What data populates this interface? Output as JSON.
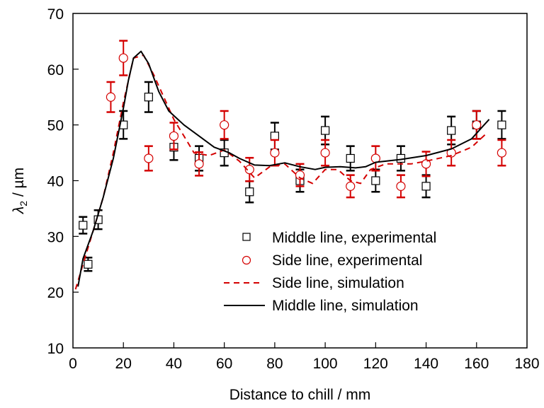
{
  "chart_data": {
    "type": "scatter",
    "title": "",
    "xlabel": "Distance to chill / mm",
    "ylabel_symbol": "λ",
    "ylabel_subscript": "2",
    "ylabel_unit": " / µm",
    "xlim": [
      0,
      180
    ],
    "ylim": [
      10,
      70
    ],
    "xticks": [
      0,
      20,
      40,
      60,
      80,
      100,
      120,
      140,
      160,
      180
    ],
    "yticks": [
      10,
      20,
      30,
      40,
      50,
      60,
      70
    ],
    "grid": false,
    "legend_position": "center-right",
    "colors": {
      "black": "#000000",
      "red": "#d40000"
    },
    "series": [
      {
        "name": "Middle line, experimental",
        "kind": "points",
        "marker": "square",
        "color": "#000000",
        "x": [
          4,
          6,
          10,
          20,
          30,
          40,
          50,
          60,
          70,
          80,
          90,
          100,
          110,
          120,
          130,
          140,
          150,
          160,
          170
        ],
        "y": [
          32,
          25,
          33,
          50,
          55,
          46,
          44,
          45,
          38,
          48,
          40,
          49,
          44,
          40,
          44,
          39,
          49,
          50,
          50
        ],
        "err": [
          1.5,
          1.2,
          1.7,
          2.5,
          2.7,
          2.3,
          2.2,
          2.3,
          1.9,
          2.4,
          2.0,
          2.5,
          2.2,
          2.0,
          2.2,
          2.0,
          2.5,
          2.5,
          2.5
        ]
      },
      {
        "name": "Side line, experimental",
        "kind": "points",
        "marker": "circle",
        "color": "#d40000",
        "x": [
          15,
          20,
          30,
          40,
          50,
          60,
          70,
          80,
          90,
          100,
          110,
          120,
          130,
          140,
          150,
          160,
          170
        ],
        "y": [
          55,
          62,
          44,
          48,
          43,
          50,
          42,
          45,
          41,
          45,
          39,
          44,
          39,
          43,
          45,
          50,
          45
        ],
        "err": [
          2.7,
          3.1,
          2.2,
          2.4,
          2.1,
          2.5,
          2.1,
          2.3,
          2.0,
          2.3,
          2.0,
          2.2,
          2.0,
          2.2,
          2.3,
          2.5,
          2.3
        ]
      },
      {
        "name": "Side line, simulation",
        "kind": "line",
        "dash": "dashed",
        "color": "#d40000",
        "x": [
          1,
          4,
          8,
          12,
          16,
          20,
          24,
          28,
          32,
          36,
          40,
          44,
          48,
          54,
          60,
          66,
          72,
          78,
          84,
          90,
          95,
          100,
          105,
          110,
          114,
          118,
          124,
          134,
          140,
          150,
          158,
          164
        ],
        "y": [
          20.5,
          25,
          31,
          37,
          45,
          54,
          62,
          62.5,
          59,
          55,
          51,
          48,
          45,
          44.5,
          45.5,
          43.5,
          40.5,
          42.5,
          43,
          40.5,
          39.5,
          42,
          42,
          40,
          39.5,
          42,
          43,
          43,
          43.5,
          44.5,
          46,
          48.5
        ]
      },
      {
        "name": "Middle line, simulation",
        "kind": "line",
        "dash": "solid",
        "color": "#000000",
        "x": [
          2,
          4,
          8,
          12,
          16,
          20,
          22,
          24,
          27,
          30,
          34,
          38,
          44,
          50,
          56,
          62,
          66,
          72,
          78,
          84,
          90,
          96,
          100,
          106,
          112,
          116,
          120,
          130,
          140,
          150,
          158,
          162,
          165
        ],
        "y": [
          21,
          26,
          31,
          37,
          44,
          53,
          58,
          62,
          63.2,
          61,
          56,
          52.5,
          50,
          48,
          46,
          45,
          44,
          42.8,
          42.7,
          43.2,
          42.5,
          42,
          42.4,
          42.5,
          42.3,
          42.5,
          43.3,
          43.8,
          44.5,
          45.7,
          47.5,
          49.5,
          51
        ]
      }
    ],
    "legend": [
      {
        "label": "Middle line, experimental",
        "symbol": "square",
        "color": "#000000"
      },
      {
        "label": "Side line, experimental",
        "symbol": "circle",
        "color": "#d40000"
      },
      {
        "label": "Side line, simulation",
        "symbol": "dashed-line",
        "color": "#d40000"
      },
      {
        "label": "Middle line, simulation",
        "symbol": "solid-line",
        "color": "#000000"
      }
    ]
  }
}
